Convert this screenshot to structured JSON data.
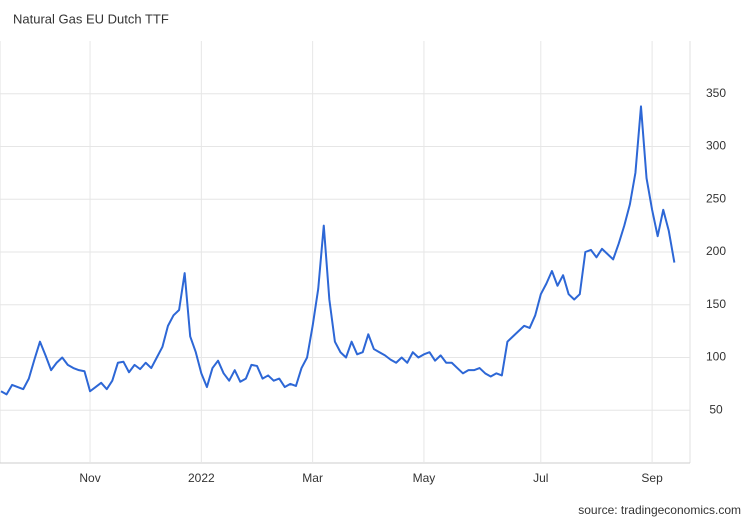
{
  "chart_data": {
    "type": "line",
    "title": "Natural Gas EU Dutch TTF",
    "source": "source: tradingeconomics.com",
    "categories": [
      null,
      null,
      null,
      null,
      null,
      null,
      null,
      null,
      null,
      null,
      null,
      null,
      null,
      null,
      null,
      null,
      "Nov",
      null,
      null,
      null,
      null,
      null,
      null,
      null,
      null,
      null,
      null,
      null,
      null,
      null,
      null,
      null,
      null,
      null,
      null,
      null,
      "2022",
      null,
      null,
      null,
      null,
      null,
      null,
      null,
      null,
      null,
      null,
      null,
      null,
      null,
      null,
      null,
      null,
      null,
      null,
      null,
      "Mar",
      null,
      null,
      null,
      null,
      null,
      null,
      null,
      null,
      null,
      null,
      null,
      null,
      null,
      null,
      null,
      null,
      null,
      null,
      null,
      "May",
      null,
      null,
      null,
      null,
      null,
      null,
      null,
      null,
      null,
      null,
      null,
      null,
      null,
      null,
      null,
      null,
      null,
      null,
      null,
      null,
      "Jul",
      null,
      null,
      null,
      null,
      null,
      null,
      null,
      null,
      null,
      null,
      null,
      null,
      null,
      null,
      null,
      null,
      null,
      null,
      null,
      "Sep",
      null,
      null,
      null,
      null
    ],
    "values": [
      68,
      65,
      74,
      72,
      70,
      80,
      98,
      115,
      102,
      88,
      95,
      100,
      93,
      90,
      88,
      87,
      68,
      72,
      76,
      70,
      78,
      95,
      96,
      86,
      93,
      89,
      95,
      90,
      100,
      110,
      130,
      140,
      145,
      180,
      120,
      105,
      85,
      72,
      90,
      97,
      85,
      78,
      88,
      77,
      80,
      93,
      92,
      80,
      83,
      78,
      80,
      72,
      75,
      73,
      90,
      100,
      130,
      165,
      225,
      155,
      115,
      105,
      100,
      115,
      103,
      105,
      122,
      108,
      105,
      102,
      98,
      95,
      100,
      95,
      105,
      100,
      103,
      105,
      97,
      102,
      95,
      95,
      90,
      85,
      88,
      88,
      90,
      85,
      82,
      85,
      83,
      115,
      120,
      125,
      130,
      128,
      140,
      160,
      170,
      182,
      168,
      178,
      160,
      155,
      160,
      200,
      202,
      195,
      203,
      198,
      193,
      208,
      225,
      245,
      275,
      338,
      270,
      240,
      215,
      240,
      220,
      190
    ],
    "color": "#2d67d6",
    "ylim": [
      0,
      400
    ],
    "yticks": [
      50,
      100,
      150,
      200,
      250,
      300,
      350
    ],
    "grid": true
  }
}
